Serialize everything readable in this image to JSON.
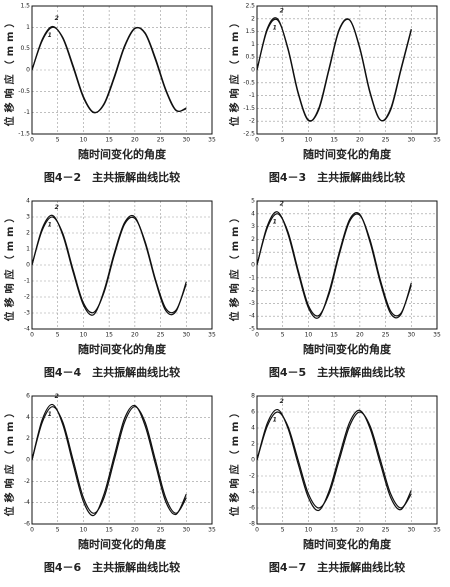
{
  "chart_data": [
    {
      "type": "line",
      "title": "图4－2　主共振解曲线比较",
      "xlabel": "随时间变化的角度",
      "ylabel": "位移响应（mm）",
      "x": [
        0,
        2,
        4,
        6,
        8,
        10,
        12,
        14,
        16,
        18,
        20,
        22,
        24,
        26,
        28,
        30
      ],
      "series": [
        {
          "name": "1",
          "color": "#111111",
          "values": [
            0,
            0.69,
            1.0,
            0.76,
            0.1,
            -0.62,
            -0.99,
            -0.81,
            -0.19,
            0.54,
            0.97,
            0.87,
            0.28,
            -0.45,
            -0.94,
            -0.91
          ]
        },
        {
          "name": "2",
          "color": "#111111",
          "values": [
            0,
            0.72,
            1.02,
            0.74,
            0.06,
            -0.65,
            -1.0,
            -0.79,
            -0.15,
            0.57,
            0.98,
            0.85,
            0.24,
            -0.48,
            -0.95,
            -0.89
          ]
        }
      ],
      "xlim": [
        0,
        35
      ],
      "xticks": [
        0,
        5,
        10,
        15,
        20,
        25,
        30,
        35
      ],
      "ylim": [
        -1.5,
        1.5
      ],
      "yticks": [
        -1.5,
        -1,
        -0.5,
        0,
        0.5,
        1,
        1.5
      ],
      "grid": true
    },
    {
      "type": "line",
      "title": "图4－3　主共振解曲线比较",
      "xlabel": "随时间变化的角度",
      "ylabel": "位移响应（mm）",
      "x": [
        0,
        2,
        4,
        6,
        8,
        10,
        12,
        14,
        16,
        18,
        20,
        22,
        24,
        26,
        28,
        30
      ],
      "series": [
        {
          "name": "1",
          "color": "#111111",
          "values": [
            0,
            1.56,
            1.95,
            0.87,
            -0.87,
            -1.95,
            -1.56,
            0,
            1.56,
            1.95,
            0.87,
            -0.87,
            -1.95,
            -1.56,
            0,
            1.56
          ]
        },
        {
          "name": "2",
          "color": "#111111",
          "values": [
            0,
            1.62,
            2.0,
            0.82,
            -0.92,
            -1.98,
            -1.5,
            0.06,
            1.6,
            1.96,
            0.82,
            -0.92,
            -1.96,
            -1.5,
            0.06,
            1.6
          ]
        }
      ],
      "xlim": [
        0,
        35
      ],
      "xticks": [
        0,
        5,
        10,
        15,
        20,
        25,
        30,
        35
      ],
      "ylim": [
        -2.5,
        2.5
      ],
      "yticks": [
        -2.5,
        -2,
        -1.5,
        -1,
        -0.5,
        0,
        0.5,
        1,
        1.5,
        2,
        2.5
      ],
      "grid": true
    },
    {
      "type": "line",
      "title": "图4－4　主共振解曲线比较",
      "xlabel": "随时间变化的角度",
      "ylabel": "位移响应（mm）",
      "x": [
        0,
        2,
        4,
        6,
        8,
        10,
        12,
        14,
        16,
        18,
        20,
        22,
        24,
        26,
        28,
        30
      ],
      "series": [
        {
          "name": "1",
          "color": "#111111",
          "values": [
            0,
            2.18,
            3.0,
            1.96,
            -0.3,
            -2.37,
            -2.96,
            -1.72,
            0.61,
            2.55,
            2.91,
            1.46,
            -0.89,
            -2.71,
            -2.82,
            -1.19
          ]
        },
        {
          "name": "2",
          "color": "#111111",
          "values": [
            0,
            2.3,
            3.1,
            1.85,
            -0.45,
            -2.5,
            -3.1,
            -1.6,
            0.75,
            2.65,
            3.0,
            1.35,
            -1.0,
            -2.85,
            -2.9,
            -1.05
          ]
        }
      ],
      "xlim": [
        0,
        35
      ],
      "xticks": [
        0,
        5,
        10,
        15,
        20,
        25,
        30,
        35
      ],
      "ylim": [
        -4,
        4
      ],
      "yticks": [
        -4,
        -3,
        -2,
        -1,
        0,
        1,
        2,
        3,
        4
      ],
      "grid": true
    },
    {
      "type": "line",
      "title": "图4－5　主共振解曲线比较",
      "xlabel": "随时间变化的角度",
      "ylabel": "位移响应（mm）",
      "x": [
        0,
        2,
        4,
        6,
        8,
        10,
        12,
        14,
        16,
        18,
        20,
        22,
        24,
        26,
        28,
        30
      ],
      "series": [
        {
          "name": "1",
          "color": "#111111",
          "values": [
            0,
            2.9,
            4.0,
            2.61,
            -0.4,
            -3.16,
            -3.95,
            -2.29,
            0.81,
            3.4,
            3.88,
            1.94,
            -1.19,
            -3.61,
            -3.76,
            -1.59
          ]
        },
        {
          "name": "2",
          "color": "#111111",
          "values": [
            0,
            3.05,
            4.15,
            2.45,
            -0.6,
            -3.35,
            -4.1,
            -2.1,
            1.0,
            3.55,
            3.95,
            1.75,
            -1.4,
            -3.8,
            -3.85,
            -1.4
          ]
        }
      ],
      "xlim": [
        0,
        35
      ],
      "xticks": [
        0,
        5,
        10,
        15,
        20,
        25,
        30,
        35
      ],
      "ylim": [
        -5,
        5
      ],
      "yticks": [
        -5,
        -4,
        -3,
        -2,
        -1,
        0,
        1,
        2,
        3,
        4,
        5
      ],
      "grid": true
    },
    {
      "type": "line",
      "title": "图4－6　主共振解曲线比较",
      "xlabel": "随时间变化的角度",
      "ylabel": "位移响应（mm）",
      "x": [
        0,
        2,
        4,
        6,
        8,
        10,
        12,
        14,
        16,
        18,
        20,
        22,
        24,
        26,
        28,
        30
      ],
      "series": [
        {
          "name": "1",
          "color": "#111111",
          "values": [
            0,
            3.54,
            5,
            3.54,
            0,
            -3.54,
            -5,
            -3.54,
            0,
            3.54,
            5,
            3.54,
            0,
            -3.54,
            -5,
            -3.54
          ]
        },
        {
          "name": "2",
          "color": "#111111",
          "values": [
            0,
            3.8,
            5.2,
            3.3,
            -0.4,
            -3.9,
            -5.2,
            -3.2,
            0.4,
            3.9,
            5.1,
            3.2,
            -0.4,
            -3.9,
            -5.1,
            -3.2
          ]
        }
      ],
      "xlim": [
        0,
        35
      ],
      "xticks": [
        0,
        5,
        10,
        15,
        20,
        25,
        30,
        35
      ],
      "ylim": [
        -6,
        6
      ],
      "yticks": [
        -6,
        -4,
        -2,
        0,
        2,
        4,
        6
      ],
      "grid": true
    },
    {
      "type": "line",
      "title": "图4－7　主共振解曲线比较",
      "xlabel": "随时间变化的角度",
      "ylabel": "位移响应（mm）",
      "x": [
        0,
        2,
        4,
        6,
        8,
        10,
        12,
        14,
        16,
        18,
        20,
        22,
        24,
        26,
        28,
        30
      ],
      "series": [
        {
          "name": "1",
          "color": "#111111",
          "values": [
            0,
            4.24,
            6,
            4.24,
            0,
            -4.24,
            -6,
            -4.24,
            0,
            4.24,
            6,
            4.24,
            0,
            -4.24,
            -6,
            -4.24
          ]
        },
        {
          "name": "2",
          "color": "#111111",
          "values": [
            0,
            4.6,
            6.3,
            4.0,
            -0.5,
            -4.7,
            -6.3,
            -3.9,
            0.5,
            4.7,
            6.2,
            3.9,
            -0.5,
            -4.7,
            -6.2,
            -3.8
          ]
        }
      ],
      "xlim": [
        0,
        35
      ],
      "xticks": [
        0,
        5,
        10,
        15,
        20,
        25,
        30,
        35
      ],
      "ylim": [
        -8,
        8
      ],
      "yticks": [
        -8,
        -6,
        -4,
        -2,
        0,
        2,
        4,
        6,
        8
      ],
      "grid": true
    }
  ]
}
